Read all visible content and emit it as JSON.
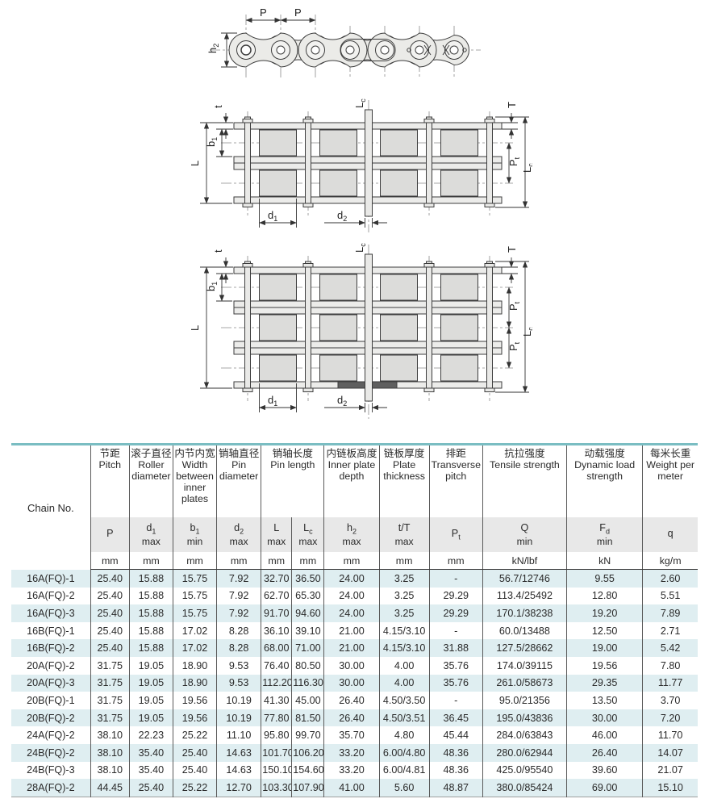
{
  "colors": {
    "accent_teal": "#7abdc2",
    "row_alt_blue": "#dfeef1",
    "symbol_band_gray": "#e8e8e8",
    "drawing_fill_gray": "#ebebe8"
  },
  "diagram_labels": {
    "P": {
      "m": "P",
      "s": ""
    },
    "h2": {
      "m": "h",
      "s": "2"
    },
    "t": {
      "m": "t",
      "s": ""
    },
    "b1": {
      "m": "b",
      "s": "1"
    },
    "L": {
      "m": "L",
      "s": ""
    },
    "Lc": {
      "m": "L",
      "s": "c"
    },
    "T": {
      "m": "T",
      "s": ""
    },
    "Pt": {
      "m": "P",
      "s": "t"
    },
    "d1": {
      "m": "d",
      "s": "1"
    },
    "d2": {
      "m": "d",
      "s": "2"
    }
  },
  "table": {
    "chain_no_header": "Chain No.",
    "groups": [
      {
        "zh": "节距",
        "en": "Pitch"
      },
      {
        "zh": "滚子直径",
        "en": "Roller diameter"
      },
      {
        "zh": "内节内宽",
        "en": "Width between inner plates"
      },
      {
        "zh": "销轴直径",
        "en": "Pin diameter"
      },
      {
        "zh": "销轴长度",
        "en": "Pin length"
      },
      {
        "zh": "内链板高度",
        "en": "Inner plate depth"
      },
      {
        "zh": "链板厚度",
        "en": "Plate thickness"
      },
      {
        "zh": "排距",
        "en": "Transverse pitch"
      },
      {
        "zh": "抗拉强度",
        "en": "Tensile strength"
      },
      {
        "zh": "动载强度",
        "en": "Dynamic load strength"
      },
      {
        "zh": "每米长重",
        "en": "Weight per meter"
      }
    ],
    "symbols": [
      {
        "m": "P",
        "s": "",
        "q": ""
      },
      {
        "m": "d",
        "s": "1",
        "q": "max"
      },
      {
        "m": "b",
        "s": "1",
        "q": "min"
      },
      {
        "m": "d",
        "s": "2",
        "q": "max"
      },
      {
        "m": "L",
        "s": "",
        "q": "max"
      },
      {
        "m": "L",
        "s": "c",
        "q": "max"
      },
      {
        "m": "h",
        "s": "2",
        "q": "max"
      },
      {
        "m": "t/T",
        "s": "",
        "q": "max"
      },
      {
        "m": "P",
        "s": "t",
        "q": ""
      },
      {
        "m": "Q",
        "s": "",
        "q": "min"
      },
      {
        "m": "F",
        "s": "d",
        "q": "min"
      },
      {
        "m": "q",
        "s": "",
        "q": ""
      }
    ],
    "units": [
      "mm",
      "mm",
      "mm",
      "mm",
      "mm",
      "mm",
      "mm",
      "mm",
      "mm",
      "kN/lbf",
      "kN",
      "kg/m"
    ],
    "rows": [
      {
        "chain_no": "16A(FQ)-1",
        "values": [
          "25.40",
          "15.88",
          "15.75",
          "7.92",
          "32.70",
          "36.50",
          "24.00",
          "3.25",
          "-",
          "56.7/12746",
          "9.55",
          "2.60"
        ]
      },
      {
        "chain_no": "16A(FQ)-2",
        "values": [
          "25.40",
          "15.88",
          "15.75",
          "7.92",
          "62.70",
          "65.30",
          "24.00",
          "3.25",
          "29.29",
          "113.4/25492",
          "12.80",
          "5.51"
        ]
      },
      {
        "chain_no": "16A(FQ)-3",
        "values": [
          "25.40",
          "15.88",
          "15.75",
          "7.92",
          "91.70",
          "94.60",
          "24.00",
          "3.25",
          "29.29",
          "170.1/38238",
          "19.20",
          "7.89"
        ]
      },
      {
        "chain_no": "16B(FQ)-1",
        "values": [
          "25.40",
          "15.88",
          "17.02",
          "8.28",
          "36.10",
          "39.10",
          "21.00",
          "4.15/3.10",
          "-",
          "60.0/13488",
          "12.50",
          "2.71"
        ]
      },
      {
        "chain_no": "16B(FQ)-2",
        "values": [
          "25.40",
          "15.88",
          "17.02",
          "8.28",
          "68.00",
          "71.00",
          "21.00",
          "4.15/3.10",
          "31.88",
          "127.5/28662",
          "19.00",
          "5.42"
        ]
      },
      {
        "chain_no": "20A(FQ)-2",
        "values": [
          "31.75",
          "19.05",
          "18.90",
          "9.53",
          "76.40",
          "80.50",
          "30.00",
          "4.00",
          "35.76",
          "174.0/39115",
          "19.56",
          "7.80"
        ]
      },
      {
        "chain_no": "20A(FQ)-3",
        "values": [
          "31.75",
          "19.05",
          "18.90",
          "9.53",
          "112.20",
          "116.30",
          "30.00",
          "4.00",
          "35.76",
          "261.0/58673",
          "29.35",
          "11.77"
        ]
      },
      {
        "chain_no": "20B(FQ)-1",
        "values": [
          "31.75",
          "19.05",
          "19.56",
          "10.19",
          "41.30",
          "45.00",
          "26.40",
          "4.50/3.50",
          "-",
          "95.0/21356",
          "13.50",
          "3.70"
        ]
      },
      {
        "chain_no": "20B(FQ)-2",
        "values": [
          "31.75",
          "19.05",
          "19.56",
          "10.19",
          "77.80",
          "81.50",
          "26.40",
          "4.50/3.51",
          "36.45",
          "195.0/43836",
          "30.00",
          "7.20"
        ]
      },
      {
        "chain_no": "24A(FQ)-2",
        "values": [
          "38.10",
          "22.23",
          "25.22",
          "11.10",
          "95.80",
          "99.70",
          "35.70",
          "4.80",
          "45.44",
          "284.0/63843",
          "46.00",
          "11.70"
        ]
      },
      {
        "chain_no": "24B(FQ)-2",
        "values": [
          "38.10",
          "35.40",
          "25.40",
          "14.63",
          "101.70",
          "106.20",
          "33.20",
          "6.00/4.80",
          "48.36",
          "280.0/62944",
          "26.40",
          "14.07"
        ]
      },
      {
        "chain_no": "24B(FQ)-3",
        "values": [
          "38.10",
          "35.40",
          "25.40",
          "14.63",
          "150.10",
          "154.60",
          "33.20",
          "6.00/4.81",
          "48.36",
          "425.0/95540",
          "39.60",
          "21.07"
        ]
      },
      {
        "chain_no": "28A(FQ)-2",
        "values": [
          "44.45",
          "25.40",
          "25.22",
          "12.70",
          "103.30",
          "107.90",
          "41.00",
          "5.60",
          "48.87",
          "380.0/85424",
          "69.00",
          "15.10"
        ]
      }
    ]
  }
}
